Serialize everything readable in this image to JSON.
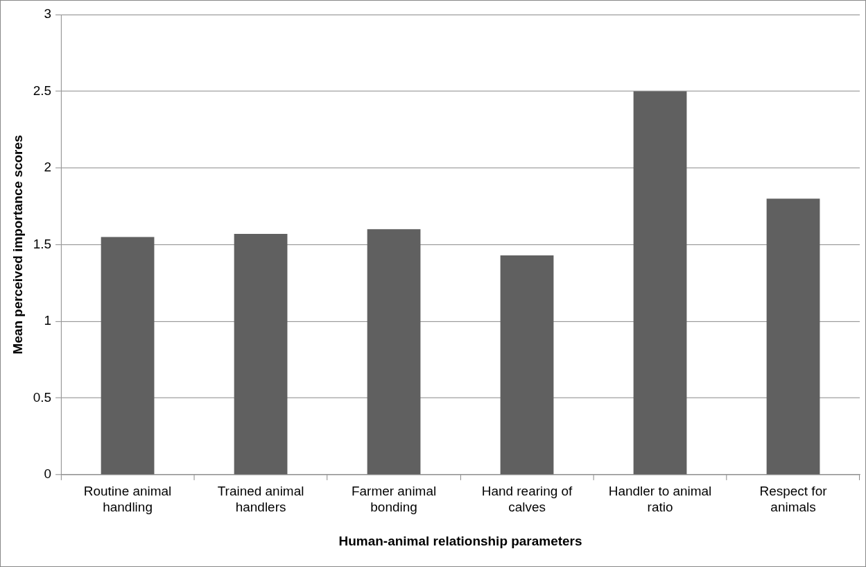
{
  "chart_data": {
    "type": "bar",
    "xlabel": "Human-animal relationship parameters",
    "ylabel": "Mean perceived importance scores",
    "categories": [
      "Routine animal handling",
      "Trained animal handlers",
      "Farmer animal bonding",
      "Hand rearing of calves",
      "Handler to animal ratio",
      "Respect for animals"
    ],
    "values": [
      1.55,
      1.57,
      1.6,
      1.43,
      2.5,
      1.8
    ],
    "color": "#606060",
    "ylim": [
      0,
      3
    ],
    "yticks": [
      0,
      0.5,
      1,
      1.5,
      2,
      2.5,
      3
    ],
    "grid": "y",
    "legend": false
  }
}
